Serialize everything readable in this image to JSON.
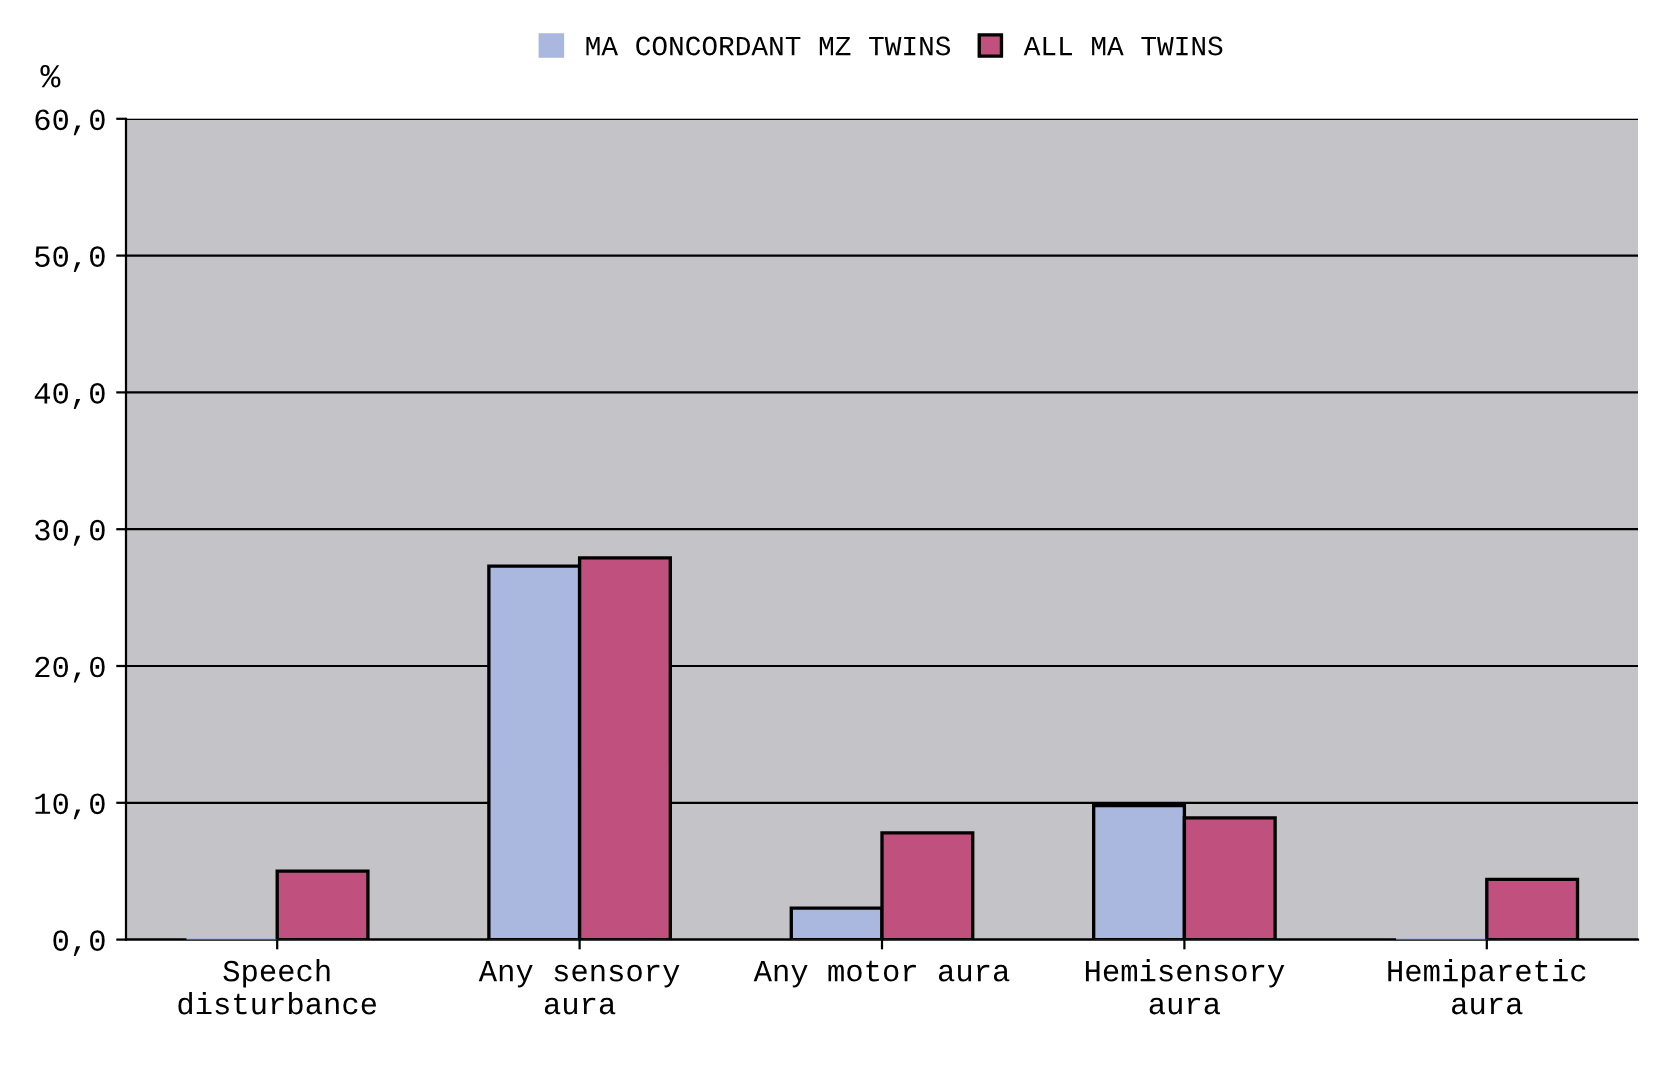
{
  "chart_data": {
    "type": "bar",
    "ylabel": "%",
    "categories": [
      "Speech\ndisturbance",
      "Any sensory\naura",
      "Any motor aura",
      "Hemisensory\naura",
      "Hemiparetic\naura"
    ],
    "series": [
      {
        "name": "MA CONCORDANT MZ TWINS",
        "color": "#aab8e0",
        "values": [
          0,
          27.3,
          2.3,
          9.8,
          0
        ]
      },
      {
        "name": "ALL MA TWINS",
        "color": "#c0507e",
        "values": [
          5.0,
          27.9,
          7.8,
          8.9,
          4.4
        ]
      }
    ],
    "ylim": [
      0,
      60
    ],
    "yticks": [
      {
        "value": 0,
        "label": "0,0"
      },
      {
        "value": 10,
        "label": "10,0"
      },
      {
        "value": 20,
        "label": "20,0"
      },
      {
        "value": 30,
        "label": "30,0"
      },
      {
        "value": 40,
        "label": "40,0"
      },
      {
        "value": 50,
        "label": "50,0"
      },
      {
        "value": 60,
        "label": "60,0"
      }
    ],
    "grid": "y",
    "legend": "top"
  }
}
